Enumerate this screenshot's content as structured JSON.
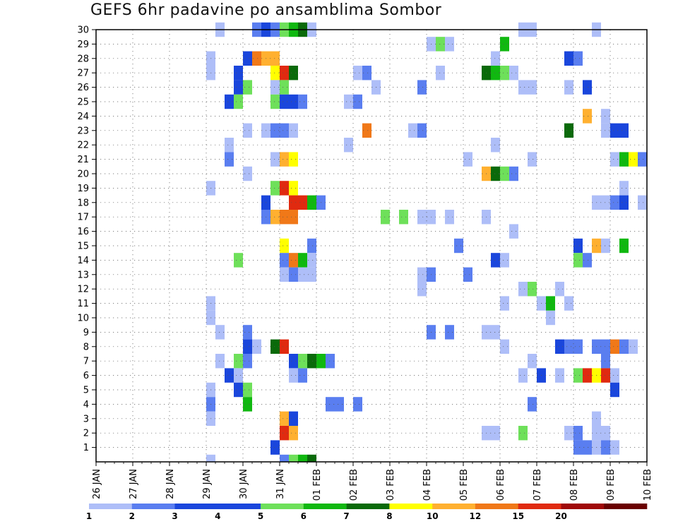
{
  "title": "GEFS 6hr padavine po ansamblima Sombor",
  "chart_data": {
    "type": "heatmap",
    "title": "GEFS 6hr padavine po ansamblima Sombor",
    "x_tick_labels": [
      "26 JAN",
      "27 JAN",
      "28 JAN",
      "29 JAN",
      "30 JAN",
      "31 JAN",
      "01 FEB",
      "02 FEB",
      "03 FEB",
      "04 FEB",
      "05 FEB",
      "06 FEB",
      "07 FEB",
      "08 FEB",
      "09 FEB",
      "10 FEB"
    ],
    "y_tick_labels": [
      "1",
      "2",
      "3",
      "4",
      "5",
      "6",
      "7",
      "8",
      "9",
      "10",
      "11",
      "12",
      "13",
      "14",
      "15",
      "16",
      "17",
      "18",
      "19",
      "20",
      "21",
      "22",
      "23",
      "24",
      "25",
      "26",
      "27",
      "28",
      "29",
      "30"
    ],
    "xlim": [
      "26 JAN",
      "10 FEB"
    ],
    "ylim": [
      0,
      30
    ],
    "grid": true,
    "colorbar": {
      "levels": [
        "1",
        "2",
        "3",
        "4",
        "5",
        "6",
        "7",
        "8",
        "10",
        "12",
        "15",
        "20"
      ],
      "colors": [
        "#aebef8",
        "#5a7ef0",
        "#1a46dc",
        "#1a46dc",
        "#6ee05a",
        "#10b810",
        "#0a6a0a",
        "#ffff00",
        "#ffb030",
        "#f07818",
        "#e02a10",
        "#a00a0a",
        "#6a0000"
      ]
    },
    "cells": [
      {
        "m": 30,
        "d": "29 JAN 06",
        "v": 1
      },
      {
        "m": 30,
        "d": "30 JAN 06",
        "v": 2
      },
      {
        "m": 30,
        "d": "30 JAN 12",
        "v": 3
      },
      {
        "m": 30,
        "d": "30 JAN 18",
        "v": 2
      },
      {
        "m": 30,
        "d": "31 JAN 00",
        "v": 5
      },
      {
        "m": 30,
        "d": "31 JAN 06",
        "v": 6
      },
      {
        "m": 30,
        "d": "31 JAN 12",
        "v": 7
      },
      {
        "m": 30,
        "d": "31 JAN 18",
        "v": 1
      },
      {
        "m": 30,
        "d": "06 FEB 12",
        "v": 1
      },
      {
        "m": 30,
        "d": "06 FEB 18",
        "v": 1
      },
      {
        "m": 30,
        "d": "08 FEB 12",
        "v": 1
      },
      {
        "m": 29,
        "d": "04 FEB 00",
        "v": 1
      },
      {
        "m": 29,
        "d": "04 FEB 06",
        "v": 5
      },
      {
        "m": 29,
        "d": "04 FEB 12",
        "v": 1
      },
      {
        "m": 29,
        "d": "06 FEB 00",
        "v": 6
      },
      {
        "m": 28,
        "d": "29 JAN 00",
        "v": 1
      },
      {
        "m": 28,
        "d": "30 JAN 00",
        "v": 3
      },
      {
        "m": 28,
        "d": "30 JAN 06",
        "v": 12
      },
      {
        "m": 28,
        "d": "30 JAN 12",
        "v": 10
      },
      {
        "m": 28,
        "d": "30 JAN 18",
        "v": 10
      },
      {
        "m": 28,
        "d": "05 FEB 18",
        "v": 1
      },
      {
        "m": 28,
        "d": "07 FEB 18",
        "v": 3
      },
      {
        "m": 28,
        "d": "08 FEB 00",
        "v": 2
      },
      {
        "m": 27,
        "d": "29 JAN 00",
        "v": 1
      },
      {
        "m": 27,
        "d": "29 JAN 18",
        "v": 3
      },
      {
        "m": 27,
        "d": "30 JAN 18",
        "v": 8
      },
      {
        "m": 27,
        "d": "31 JAN 00",
        "v": 15
      },
      {
        "m": 27,
        "d": "31 JAN 06",
        "v": 7
      },
      {
        "m": 27,
        "d": "02 FEB 00",
        "v": 1
      },
      {
        "m": 27,
        "d": "02 FEB 06",
        "v": 2
      },
      {
        "m": 27,
        "d": "04 FEB 06",
        "v": 1
      },
      {
        "m": 27,
        "d": "05 FEB 12",
        "v": 7
      },
      {
        "m": 27,
        "d": "05 FEB 18",
        "v": 6
      },
      {
        "m": 27,
        "d": "06 FEB 00",
        "v": 5
      },
      {
        "m": 27,
        "d": "06 FEB 06",
        "v": 1
      },
      {
        "m": 26,
        "d": "29 JAN 18",
        "v": 3
      },
      {
        "m": 26,
        "d": "30 JAN 00",
        "v": 5
      },
      {
        "m": 26,
        "d": "30 JAN 18",
        "v": 1
      },
      {
        "m": 26,
        "d": "31 JAN 00",
        "v": 5
      },
      {
        "m": 26,
        "d": "02 FEB 12",
        "v": 1
      },
      {
        "m": 26,
        "d": "03 FEB 18",
        "v": 2
      },
      {
        "m": 26,
        "d": "06 FEB 12",
        "v": 1
      },
      {
        "m": 26,
        "d": "06 FEB 18",
        "v": 1
      },
      {
        "m": 26,
        "d": "07 FEB 18",
        "v": 1
      },
      {
        "m": 26,
        "d": "08 FEB 06",
        "v": 3
      },
      {
        "m": 25,
        "d": "29 JAN 12",
        "v": 3
      },
      {
        "m": 25,
        "d": "29 JAN 18",
        "v": 5
      },
      {
        "m": 25,
        "d": "30 JAN 18",
        "v": 5
      },
      {
        "m": 25,
        "d": "31 JAN 00",
        "v": 3
      },
      {
        "m": 25,
        "d": "31 JAN 06",
        "v": 3
      },
      {
        "m": 25,
        "d": "31 JAN 12",
        "v": 2
      },
      {
        "m": 25,
        "d": "01 FEB 18",
        "v": 1
      },
      {
        "m": 25,
        "d": "02 FEB 00",
        "v": 2
      },
      {
        "m": 24,
        "d": "08 FEB 06",
        "v": 10
      },
      {
        "m": 24,
        "d": "08 FEB 18",
        "v": 1
      },
      {
        "m": 23,
        "d": "30 JAN 00",
        "v": 1
      },
      {
        "m": 23,
        "d": "30 JAN 12",
        "v": 1
      },
      {
        "m": 23,
        "d": "30 JAN 18",
        "v": 2
      },
      {
        "m": 23,
        "d": "31 JAN 00",
        "v": 2
      },
      {
        "m": 23,
        "d": "31 JAN 06",
        "v": 1
      },
      {
        "m": 23,
        "d": "02 FEB 06",
        "v": 12
      },
      {
        "m": 23,
        "d": "03 FEB 12",
        "v": 1
      },
      {
        "m": 23,
        "d": "03 FEB 18",
        "v": 2
      },
      {
        "m": 23,
        "d": "07 FEB 18",
        "v": 7
      },
      {
        "m": 23,
        "d": "08 FEB 18",
        "v": 1
      },
      {
        "m": 23,
        "d": "09 FEB 00",
        "v": 3
      },
      {
        "m": 23,
        "d": "09 FEB 06",
        "v": 3
      },
      {
        "m": 22,
        "d": "29 JAN 12",
        "v": 1
      },
      {
        "m": 22,
        "d": "01 FEB 18",
        "v": 1
      },
      {
        "m": 22,
        "d": "05 FEB 18",
        "v": 1
      },
      {
        "m": 21,
        "d": "29 JAN 12",
        "v": 2
      },
      {
        "m": 21,
        "d": "30 JAN 18",
        "v": 1
      },
      {
        "m": 21,
        "d": "31 JAN 00",
        "v": 10
      },
      {
        "m": 21,
        "d": "31 JAN 06",
        "v": 8
      },
      {
        "m": 21,
        "d": "05 FEB 00",
        "v": 1
      },
      {
        "m": 21,
        "d": "06 FEB 18",
        "v": 1
      },
      {
        "m": 21,
        "d": "09 FEB 00",
        "v": 1
      },
      {
        "m": 21,
        "d": "09 FEB 06",
        "v": 6
      },
      {
        "m": 21,
        "d": "09 FEB 12",
        "v": 8
      },
      {
        "m": 21,
        "d": "09 FEB 18",
        "v": 2
      },
      {
        "m": 20,
        "d": "30 JAN 00",
        "v": 1
      },
      {
        "m": 20,
        "d": "05 FEB 12",
        "v": 10
      },
      {
        "m": 20,
        "d": "05 FEB 18",
        "v": 7
      },
      {
        "m": 20,
        "d": "06 FEB 00",
        "v": 5
      },
      {
        "m": 20,
        "d": "06 FEB 06",
        "v": 2
      },
      {
        "m": 19,
        "d": "29 JAN 00",
        "v": 1
      },
      {
        "m": 19,
        "d": "30 JAN 18",
        "v": 5
      },
      {
        "m": 19,
        "d": "31 JAN 00",
        "v": 15
      },
      {
        "m": 19,
        "d": "31 JAN 06",
        "v": 8
      },
      {
        "m": 19,
        "d": "09 FEB 06",
        "v": 1
      },
      {
        "m": 18,
        "d": "30 JAN 12",
        "v": 3
      },
      {
        "m": 18,
        "d": "31 JAN 06",
        "v": 15
      },
      {
        "m": 18,
        "d": "31 JAN 12",
        "v": 15
      },
      {
        "m": 18,
        "d": "31 JAN 18",
        "v": 6
      },
      {
        "m": 18,
        "d": "01 FEB 00",
        "v": 2
      },
      {
        "m": 18,
        "d": "08 FEB 12",
        "v": 1
      },
      {
        "m": 18,
        "d": "08 FEB 18",
        "v": 1
      },
      {
        "m": 18,
        "d": "09 FEB 00",
        "v": 2
      },
      {
        "m": 18,
        "d": "09 FEB 06",
        "v": 3
      },
      {
        "m": 18,
        "d": "09 FEB 18",
        "v": 1
      },
      {
        "m": 17,
        "d": "30 JAN 12",
        "v": 2
      },
      {
        "m": 17,
        "d": "30 JAN 18",
        "v": 10
      },
      {
        "m": 17,
        "d": "31 JAN 00",
        "v": 12
      },
      {
        "m": 17,
        "d": "31 JAN 06",
        "v": 12
      },
      {
        "m": 17,
        "d": "02 FEB 18",
        "v": 5
      },
      {
        "m": 17,
        "d": "03 FEB 06",
        "v": 5
      },
      {
        "m": 17,
        "d": "03 FEB 18",
        "v": 1
      },
      {
        "m": 17,
        "d": "04 FEB 00",
        "v": 1
      },
      {
        "m": 17,
        "d": "04 FEB 12",
        "v": 1
      },
      {
        "m": 17,
        "d": "05 FEB 12",
        "v": 1
      },
      {
        "m": 16,
        "d": "06 FEB 06",
        "v": 1
      },
      {
        "m": 15,
        "d": "31 JAN 00",
        "v": 8
      },
      {
        "m": 15,
        "d": "31 JAN 18",
        "v": 2
      },
      {
        "m": 15,
        "d": "04 FEB 18",
        "v": 2
      },
      {
        "m": 15,
        "d": "08 FEB 00",
        "v": 3
      },
      {
        "m": 15,
        "d": "08 FEB 12",
        "v": 10
      },
      {
        "m": 15,
        "d": "08 FEB 18",
        "v": 1
      },
      {
        "m": 15,
        "d": "09 FEB 06",
        "v": 6
      },
      {
        "m": 14,
        "d": "29 JAN 18",
        "v": 5
      },
      {
        "m": 14,
        "d": "31 JAN 00",
        "v": 2
      },
      {
        "m": 14,
        "d": "31 JAN 06",
        "v": 12
      },
      {
        "m": 14,
        "d": "31 JAN 12",
        "v": 6
      },
      {
        "m": 14,
        "d": "31 JAN 18",
        "v": 1
      },
      {
        "m": 14,
        "d": "05 FEB 18",
        "v": 3
      },
      {
        "m": 14,
        "d": "06 FEB 00",
        "v": 1
      },
      {
        "m": 14,
        "d": "08 FEB 00",
        "v": 5
      },
      {
        "m": 14,
        "d": "08 FEB 06",
        "v": 2
      },
      {
        "m": 13,
        "d": "31 JAN 00",
        "v": 1
      },
      {
        "m": 13,
        "d": "31 JAN 06",
        "v": 2
      },
      {
        "m": 13,
        "d": "31 JAN 12",
        "v": 1
      },
      {
        "m": 13,
        "d": "31 JAN 18",
        "v": 1
      },
      {
        "m": 13,
        "d": "03 FEB 18",
        "v": 1
      },
      {
        "m": 13,
        "d": "04 FEB 00",
        "v": 2
      },
      {
        "m": 13,
        "d": "05 FEB 00",
        "v": 2
      },
      {
        "m": 12,
        "d": "03 FEB 18",
        "v": 1
      },
      {
        "m": 12,
        "d": "06 FEB 12",
        "v": 1
      },
      {
        "m": 12,
        "d": "06 FEB 18",
        "v": 5
      },
      {
        "m": 12,
        "d": "07 FEB 12",
        "v": 1
      },
      {
        "m": 11,
        "d": "29 JAN 00",
        "v": 1
      },
      {
        "m": 11,
        "d": "06 FEB 00",
        "v": 1
      },
      {
        "m": 11,
        "d": "07 FEB 00",
        "v": 1
      },
      {
        "m": 11,
        "d": "07 FEB 06",
        "v": 6
      },
      {
        "m": 11,
        "d": "07 FEB 18",
        "v": 1
      },
      {
        "m": 10,
        "d": "29 JAN 00",
        "v": 1
      },
      {
        "m": 10,
        "d": "07 FEB 06",
        "v": 1
      },
      {
        "m": 9,
        "d": "29 JAN 06",
        "v": 1
      },
      {
        "m": 9,
        "d": "30 JAN 00",
        "v": 2
      },
      {
        "m": 9,
        "d": "04 FEB 00",
        "v": 2
      },
      {
        "m": 9,
        "d": "04 FEB 12",
        "v": 2
      },
      {
        "m": 9,
        "d": "05 FEB 12",
        "v": 1
      },
      {
        "m": 9,
        "d": "05 FEB 18",
        "v": 1
      },
      {
        "m": 8,
        "d": "30 JAN 00",
        "v": 3
      },
      {
        "m": 8,
        "d": "30 JAN 06",
        "v": 1
      },
      {
        "m": 8,
        "d": "30 JAN 18",
        "v": 7
      },
      {
        "m": 8,
        "d": "31 JAN 00",
        "v": 15
      },
      {
        "m": 8,
        "d": "06 FEB 00",
        "v": 1
      },
      {
        "m": 8,
        "d": "07 FEB 12",
        "v": 3
      },
      {
        "m": 8,
        "d": "07 FEB 18",
        "v": 2
      },
      {
        "m": 8,
        "d": "08 FEB 00",
        "v": 2
      },
      {
        "m": 8,
        "d": "08 FEB 12",
        "v": 2
      },
      {
        "m": 8,
        "d": "08 FEB 18",
        "v": 2
      },
      {
        "m": 8,
        "d": "09 FEB 00",
        "v": 12
      },
      {
        "m": 8,
        "d": "09 FEB 06",
        "v": 2
      },
      {
        "m": 8,
        "d": "09 FEB 12",
        "v": 1
      },
      {
        "m": 7,
        "d": "29 JAN 06",
        "v": 1
      },
      {
        "m": 7,
        "d": "29 JAN 18",
        "v": 5
      },
      {
        "m": 7,
        "d": "30 JAN 00",
        "v": 2
      },
      {
        "m": 7,
        "d": "31 JAN 06",
        "v": 3
      },
      {
        "m": 7,
        "d": "31 JAN 12",
        "v": 5
      },
      {
        "m": 7,
        "d": "31 JAN 18",
        "v": 7
      },
      {
        "m": 7,
        "d": "01 FEB 00",
        "v": 6
      },
      {
        "m": 7,
        "d": "01 FEB 06",
        "v": 2
      },
      {
        "m": 7,
        "d": "06 FEB 18",
        "v": 1
      },
      {
        "m": 7,
        "d": "08 FEB 18",
        "v": 2
      },
      {
        "m": 6,
        "d": "29 JAN 12",
        "v": 3
      },
      {
        "m": 6,
        "d": "29 JAN 18",
        "v": 1
      },
      {
        "m": 6,
        "d": "31 JAN 06",
        "v": 1
      },
      {
        "m": 6,
        "d": "31 JAN 12",
        "v": 2
      },
      {
        "m": 6,
        "d": "06 FEB 12",
        "v": 1
      },
      {
        "m": 6,
        "d": "07 FEB 00",
        "v": 3
      },
      {
        "m": 6,
        "d": "07 FEB 12",
        "v": 1
      },
      {
        "m": 6,
        "d": "08 FEB 00",
        "v": 5
      },
      {
        "m": 6,
        "d": "08 FEB 06",
        "v": 15
      },
      {
        "m": 6,
        "d": "08 FEB 12",
        "v": 8
      },
      {
        "m": 6,
        "d": "08 FEB 18",
        "v": 15
      },
      {
        "m": 6,
        "d": "09 FEB 00",
        "v": 1
      },
      {
        "m": 5,
        "d": "29 JAN 00",
        "v": 1
      },
      {
        "m": 5,
        "d": "29 JAN 18",
        "v": 3
      },
      {
        "m": 5,
        "d": "30 JAN 00",
        "v": 5
      },
      {
        "m": 5,
        "d": "09 FEB 00",
        "v": 3
      },
      {
        "m": 4,
        "d": "29 JAN 00",
        "v": 2
      },
      {
        "m": 4,
        "d": "30 JAN 00",
        "v": 6
      },
      {
        "m": 4,
        "d": "01 FEB 06",
        "v": 2
      },
      {
        "m": 4,
        "d": "01 FEB 12",
        "v": 2
      },
      {
        "m": 4,
        "d": "02 FEB 00",
        "v": 2
      },
      {
        "m": 4,
        "d": "06 FEB 18",
        "v": 2
      },
      {
        "m": 3,
        "d": "29 JAN 00",
        "v": 1
      },
      {
        "m": 3,
        "d": "31 JAN 00",
        "v": 10
      },
      {
        "m": 3,
        "d": "31 JAN 06",
        "v": 3
      },
      {
        "m": 3,
        "d": "08 FEB 12",
        "v": 1
      },
      {
        "m": 2,
        "d": "31 JAN 00",
        "v": 15
      },
      {
        "m": 2,
        "d": "31 JAN 06",
        "v": 10
      },
      {
        "m": 2,
        "d": "05 FEB 12",
        "v": 1
      },
      {
        "m": 2,
        "d": "05 FEB 18",
        "v": 1
      },
      {
        "m": 2,
        "d": "06 FEB 12",
        "v": 5
      },
      {
        "m": 2,
        "d": "07 FEB 18",
        "v": 1
      },
      {
        "m": 2,
        "d": "08 FEB 00",
        "v": 2
      },
      {
        "m": 2,
        "d": "08 FEB 12",
        "v": 1
      },
      {
        "m": 2,
        "d": "08 FEB 18",
        "v": 1
      },
      {
        "m": 1,
        "d": "30 JAN 18",
        "v": 3
      },
      {
        "m": 1,
        "d": "08 FEB 00",
        "v": 2
      },
      {
        "m": 1,
        "d": "08 FEB 06",
        "v": 2
      },
      {
        "m": 1,
        "d": "08 FEB 12",
        "v": 1
      },
      {
        "m": 1,
        "d": "08 FEB 18",
        "v": 2
      },
      {
        "m": 1,
        "d": "09 FEB 00",
        "v": 1
      },
      {
        "m": 0,
        "d": "29 JAN 00",
        "v": 1
      },
      {
        "m": 0,
        "d": "31 JAN 00",
        "v": 2
      },
      {
        "m": 0,
        "d": "31 JAN 06",
        "v": 5
      },
      {
        "m": 0,
        "d": "31 JAN 12",
        "v": 6
      },
      {
        "m": 0,
        "d": "31 JAN 18",
        "v": 7
      }
    ]
  }
}
